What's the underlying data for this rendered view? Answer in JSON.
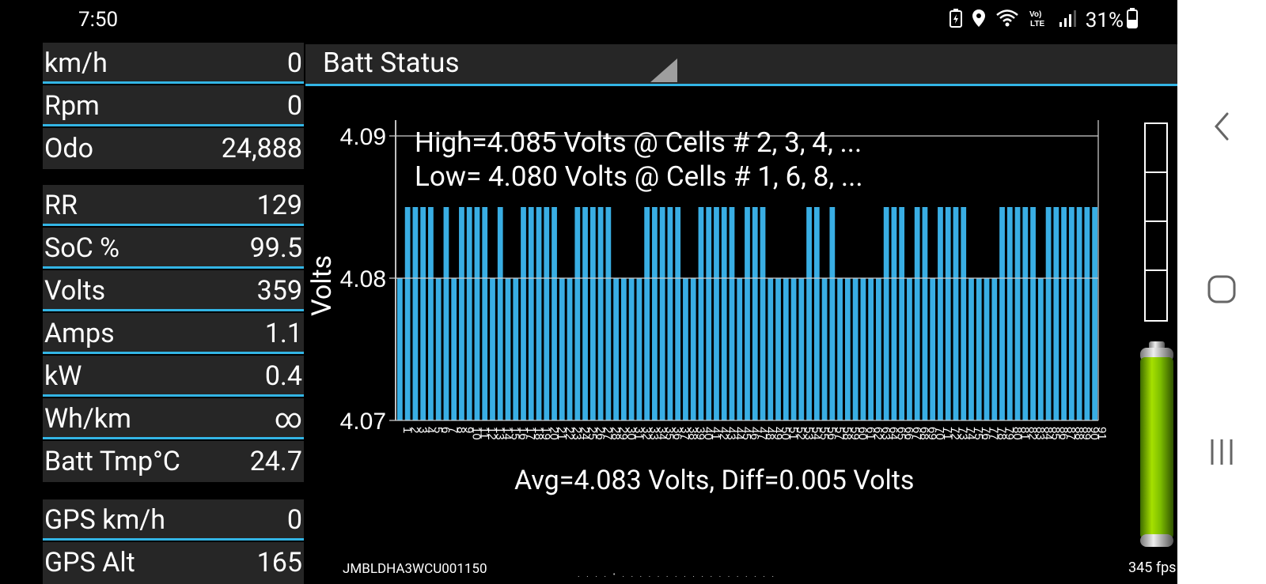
{
  "status_bar": {
    "time": "7:50",
    "battery_percent": "31%",
    "icons": [
      "battery-saver-icon",
      "location-icon",
      "wifi-icon",
      "volte-icon",
      "signal-icon",
      "battery-icon"
    ]
  },
  "left_panel": {
    "rows": [
      {
        "label": "km/h",
        "value": "0"
      },
      {
        "label": "Rpm",
        "value": "0"
      },
      {
        "label": "Odo",
        "value": "24,888"
      },
      {
        "label": "RR",
        "value": "129"
      },
      {
        "label": "SoC %",
        "value": "99.5"
      },
      {
        "label": "Volts",
        "value": "359"
      },
      {
        "label": "Amps",
        "value": "1.1"
      },
      {
        "label": "kW",
        "value": "0.4"
      },
      {
        "label": "Wh/km",
        "value": "∞"
      },
      {
        "label": "Batt Tmp°C",
        "value": "24.7"
      },
      {
        "label": "GPS km/h",
        "value": "0"
      },
      {
        "label": "GPS Alt",
        "value": "165"
      }
    ]
  },
  "header": {
    "title": "Batt Status"
  },
  "chart_data": {
    "type": "bar",
    "ylabel": "Volts",
    "ylim": [
      4.07,
      4.09
    ],
    "yticks": [
      "4.07",
      "4.08",
      "4.09"
    ],
    "grid": true,
    "annotations": {
      "high": "High=4.085 Volts @ Cells # 2, 3, 4,  ...",
      "low": "Low= 4.080 Volts @ Cells # 1, 6, 8,  ...",
      "footer": "Avg=4.083 Volts, Diff=0.005 Volts"
    },
    "values": [
      4.08,
      4.085,
      4.085,
      4.085,
      4.085,
      4.08,
      4.085,
      4.08,
      4.085,
      4.085,
      4.085,
      4.085,
      4.08,
      4.085,
      4.08,
      4.08,
      4.085,
      4.085,
      4.085,
      4.085,
      4.085,
      4.08,
      4.08,
      4.085,
      4.085,
      4.085,
      4.085,
      4.085,
      4.08,
      4.08,
      4.08,
      4.08,
      4.085,
      4.085,
      4.085,
      4.085,
      4.085,
      4.08,
      4.08,
      4.085,
      4.085,
      4.085,
      4.085,
      4.085,
      4.08,
      4.085,
      4.085,
      4.085,
      4.08,
      4.08,
      4.08,
      4.08,
      4.08,
      4.085,
      4.085,
      4.08,
      4.085,
      4.08,
      4.08,
      4.08,
      4.08,
      4.08,
      4.08,
      4.085,
      4.085,
      4.085,
      4.08,
      4.085,
      4.085,
      4.08,
      4.085,
      4.085,
      4.085,
      4.085,
      4.08,
      4.08,
      4.08,
      4.08,
      4.085,
      4.085,
      4.085,
      4.085,
      4.085,
      4.08,
      4.085,
      4.085,
      4.085,
      4.085,
      4.085,
      4.085,
      4.085
    ]
  },
  "footer": {
    "vin": "JMBLDHA3WCU001150",
    "fps": "345 fps",
    "page_dots": ". . . . • . . . . . . . . . . . . . . . . . ."
  }
}
